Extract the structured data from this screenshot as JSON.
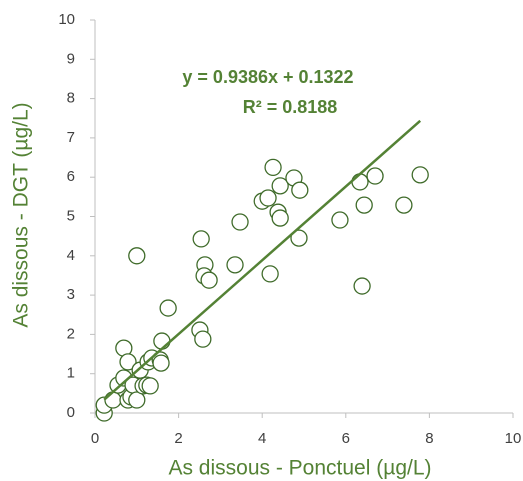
{
  "chart_data": {
    "type": "scatter",
    "x_label": "As dissous - Ponctuel (µg/L)",
    "y_label": "As dissous - DGT (µg/L)",
    "x": [
      0.22,
      0.22,
      0.43,
      0.55,
      0.69,
      0.69,
      0.79,
      0.79,
      0.86,
      0.91,
      1.0,
      1.0,
      1.08,
      1.15,
      1.24,
      1.27,
      1.36,
      1.32,
      1.56,
      1.58,
      1.6,
      1.75,
      2.51,
      2.58,
      2.54,
      2.63,
      2.61,
      2.73,
      3.35,
      3.47,
      4.0,
      4.14,
      4.19,
      4.26,
      4.38,
      4.43,
      4.43,
      4.76,
      4.88,
      4.9,
      5.86,
      6.34,
      6.39,
      6.44,
      6.7,
      7.39,
      7.78
    ],
    "values": [
      0.0,
      0.2,
      0.33,
      0.71,
      0.89,
      1.65,
      1.3,
      0.33,
      0.41,
      0.71,
      0.33,
      4.0,
      1.09,
      0.69,
      0.71,
      1.3,
      1.4,
      0.69,
      1.35,
      1.27,
      1.83,
      2.67,
      2.11,
      1.88,
      4.43,
      3.77,
      3.49,
      3.38,
      3.77,
      4.86,
      5.39,
      5.47,
      3.54,
      6.25,
      5.11,
      4.96,
      5.78,
      5.98,
      4.45,
      5.67,
      4.91,
      5.88,
      3.23,
      5.29,
      6.03,
      5.29,
      6.06
    ],
    "marker_color": "#3f6b2a",
    "trendline": {
      "slope": 0.9386,
      "intercept": 0.1322,
      "color": "#548235",
      "equation": "y = 0.9386x + 0.1322",
      "r_squared": "R² = 0.8188"
    },
    "xlim": [
      0,
      10
    ],
    "xticks": [
      0,
      2,
      4,
      6,
      8,
      10
    ],
    "ylim": [
      0,
      10
    ],
    "yticks": [
      0,
      1,
      2,
      3,
      4,
      5,
      6,
      7,
      8,
      9,
      10
    ],
    "grid": false
  }
}
